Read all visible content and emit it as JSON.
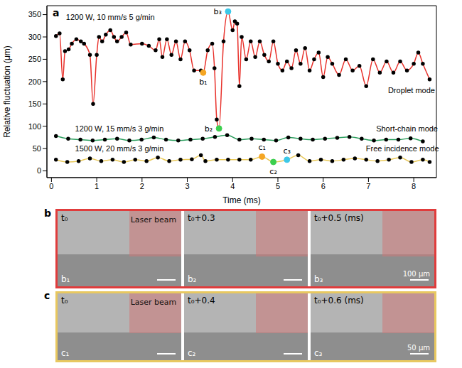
{
  "chart_data": {
    "type": "line",
    "panel_label": "a",
    "x_label": "Time (ms)",
    "y_label": "Relative fluctuation (μm)",
    "xlim": [
      -0.1,
      8.5
    ],
    "xticks": [
      0,
      1,
      2,
      3,
      4,
      5,
      6,
      7,
      8
    ],
    "ylim": [
      -15,
      370
    ],
    "yticks": [
      0,
      50,
      100,
      150,
      200,
      250,
      300,
      350
    ],
    "grid": false,
    "series": [
      {
        "name": "Droplet mode",
        "color": "#e8302a",
        "marker": "o",
        "x": [
          0.1,
          0.18,
          0.25,
          0.3,
          0.38,
          0.45,
          0.55,
          0.65,
          0.72,
          0.85,
          0.92,
          1.0,
          1.05,
          1.12,
          1.2,
          1.3,
          1.38,
          1.45,
          1.55,
          1.65,
          1.75,
          2.0,
          2.15,
          2.3,
          2.38,
          2.45,
          2.55,
          2.65,
          2.75,
          2.85,
          2.95,
          3.05,
          3.15,
          3.3,
          3.35,
          3.45,
          3.55,
          3.6,
          3.65,
          3.7,
          3.8,
          3.9,
          4.0,
          4.05,
          4.1,
          4.15,
          4.2,
          4.3,
          4.4,
          4.5,
          4.6,
          4.7,
          4.8,
          4.9,
          5.0,
          5.1,
          5.2,
          5.3,
          5.4,
          5.5,
          5.6,
          5.7,
          5.8,
          5.9,
          6.0,
          6.1,
          6.2,
          6.35,
          6.5,
          6.65,
          6.8,
          6.95,
          7.1,
          7.25,
          7.4,
          7.55,
          7.7,
          7.85,
          8.0,
          8.1,
          8.2,
          8.35
        ],
        "values": [
          302,
          308,
          205,
          268,
          272,
          285,
          295,
          290,
          285,
          260,
          150,
          260,
          300,
          290,
          305,
          315,
          300,
          290,
          300,
          310,
          283,
          285,
          280,
          270,
          295,
          255,
          295,
          260,
          290,
          250,
          290,
          270,
          225,
          225,
          220,
          270,
          285,
          230,
          115,
          95,
          290,
          357,
          315,
          335,
          330,
          190,
          300,
          250,
          290,
          255,
          290,
          260,
          245,
          290,
          240,
          225,
          245,
          230,
          270,
          240,
          275,
          225,
          250,
          265,
          210,
          255,
          240,
          215,
          250,
          225,
          235,
          190,
          250,
          220,
          245,
          220,
          245,
          225,
          240,
          265,
          240,
          205
        ]
      },
      {
        "name": "Short-chain mode",
        "color": "#2a9d5c",
        "marker": "o",
        "x": [
          0.1,
          0.37,
          0.64,
          0.91,
          1.18,
          1.45,
          1.72,
          1.99,
          2.26,
          2.53,
          2.8,
          3.07,
          3.34,
          3.61,
          3.88,
          4.15,
          4.42,
          4.69,
          4.96,
          5.23,
          5.5,
          5.77,
          6.04,
          6.31,
          6.58,
          6.85,
          7.12,
          7.39,
          7.66,
          7.93,
          8.2
        ],
        "values": [
          78,
          72,
          70,
          68,
          70,
          72,
          68,
          70,
          75,
          70,
          68,
          70,
          72,
          76,
          80,
          70,
          72,
          70,
          68,
          75,
          72,
          70,
          72,
          74,
          76,
          72,
          68,
          70,
          70,
          73,
          66
        ]
      },
      {
        "name": "Free incidence mode",
        "color": "#e8c858",
        "marker": "o",
        "x": [
          0.1,
          0.35,
          0.6,
          0.85,
          1.1,
          1.35,
          1.6,
          1.85,
          2.1,
          2.35,
          2.6,
          2.85,
          3.1,
          3.3,
          3.4,
          3.65,
          3.9,
          4.15,
          4.4,
          4.65,
          4.9,
          5.2,
          5.45,
          5.7,
          5.95,
          6.2,
          6.45,
          6.7,
          6.95,
          7.2,
          7.45,
          7.7,
          7.95,
          8.2,
          8.35
        ],
        "values": [
          25,
          20,
          22,
          28,
          22,
          25,
          20,
          25,
          22,
          30,
          22,
          25,
          26,
          35,
          22,
          25,
          25,
          25,
          25,
          32,
          20,
          25,
          35,
          22,
          25,
          22,
          25,
          28,
          25,
          22,
          25,
          30,
          20,
          25,
          20
        ]
      }
    ],
    "annotations": [
      {
        "text": "1200 W, 10 mm/s 5 g/min",
        "x": 1.3,
        "y": 345
      },
      {
        "text": "Droplet mode",
        "x": 7.95,
        "y": 180
      },
      {
        "text": "1200 W, 15 mm/s 3 g/min",
        "x": 1.5,
        "y": 95
      },
      {
        "text": "Short-chain mode",
        "x": 7.85,
        "y": 95
      },
      {
        "text": "1500 W, 20 mm/s 3 g/min",
        "x": 1.5,
        "y": 50
      },
      {
        "text": "Free incidence mode",
        "x": 7.75,
        "y": 50
      }
    ],
    "highlights": [
      {
        "label": "b₁",
        "x": 3.35,
        "y": 220,
        "color": "#f5a623"
      },
      {
        "label": "b₂",
        "x": 3.7,
        "y": 95,
        "color": "#3ccf4e"
      },
      {
        "label": "b₃",
        "x": 3.9,
        "y": 357,
        "color": "#3cc8e8"
      },
      {
        "label": "c₁",
        "x": 4.65,
        "y": 32,
        "color": "#f5a623"
      },
      {
        "label": "c₂",
        "x": 4.9,
        "y": 20,
        "color": "#3ccf4e"
      },
      {
        "label": "c₃",
        "x": 5.2,
        "y": 25,
        "color": "#3cc8e8"
      }
    ]
  },
  "image_panels": [
    {
      "letter": "b",
      "color": "#e03c3c",
      "beam_label": "Laser beam",
      "scale_bar": "100 μm",
      "frames": [
        {
          "time_label": "t₀",
          "label": "b₁"
        },
        {
          "time_label": "t₀+0.3",
          "label": "b₂"
        },
        {
          "time_label": "t₀+0.5 (ms)",
          "label": "b₃"
        }
      ]
    },
    {
      "letter": "c",
      "color": "#e8c860",
      "beam_label": "Laser beam",
      "scale_bar": "50 μm",
      "frames": [
        {
          "time_label": "t₀",
          "label": "c₁"
        },
        {
          "time_label": "t₀+0.4",
          "label": "c₂"
        },
        {
          "time_label": "t₀+0.6 (ms)",
          "label": "c₃"
        }
      ]
    }
  ]
}
